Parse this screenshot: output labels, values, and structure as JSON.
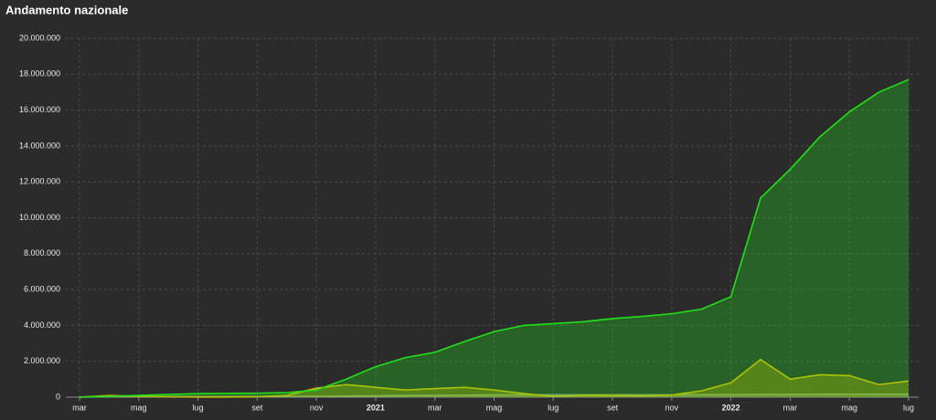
{
  "chart_data": {
    "type": "area",
    "title": "Andamento nazionale",
    "categories": [
      "mar",
      null,
      "mag",
      null,
      "lug",
      null,
      "set",
      null,
      "nov",
      null,
      "2021",
      null,
      "mar",
      null,
      "mag",
      null,
      "lug",
      null,
      "set",
      null,
      "nov",
      null,
      "2022",
      null,
      "mar",
      null,
      "mag",
      null,
      "lug"
    ],
    "series": [
      {
        "color": "#22e01a",
        "values": [
          10000,
          50000,
          100000,
          150000,
          200000,
          210000,
          220000,
          250000,
          400000,
          1000000,
          1700000,
          2200000,
          2500000,
          3100000,
          3650000,
          4000000,
          4100000,
          4200000,
          4380000,
          4500000,
          4650000,
          4900000,
          5600000,
          11100000,
          12700000,
          14500000,
          15900000,
          17000000,
          17700000
        ]
      },
      {
        "color": "#e6b800",
        "values": [
          0,
          90000,
          50000,
          30000,
          12000,
          12000,
          30000,
          100000,
          500000,
          700000,
          550000,
          400000,
          480000,
          550000,
          400000,
          200000,
          50000,
          100000,
          100000,
          80000,
          120000,
          350000,
          800000,
          2100000,
          1000000,
          1250000,
          1200000,
          700000,
          900000
        ]
      },
      {
        "color": "#9a9a9a",
        "values": [
          2000,
          25000,
          32000,
          34000,
          35000,
          35000,
          36000,
          38000,
          45000,
          60000,
          75000,
          90000,
          100000,
          115000,
          125000,
          128000,
          128000,
          129000,
          130000,
          132000,
          133000,
          137000,
          140000,
          150000,
          155000,
          161000,
          165000,
          168000,
          170000
        ]
      }
    ],
    "ylim": [
      0,
      20000000
    ],
    "yticks": [
      0,
      {
        "value": 2000000,
        "label": "2.000.000"
      },
      {
        "value": 4000000,
        "label": "4.000.000"
      },
      {
        "value": 6000000,
        "label": "6.000.000"
      },
      {
        "value": 8000000,
        "label": "8.000.000"
      },
      {
        "value": 10000000,
        "label": "10.000.000"
      },
      {
        "value": 12000000,
        "label": "12.000.000"
      },
      {
        "value": 14000000,
        "label": "14.000.000"
      },
      {
        "value": 16000000,
        "label": "16.000.000"
      },
      {
        "value": 18000000,
        "label": "18.000.000"
      },
      {
        "value": 20000000,
        "label": "20.000.000"
      }
    ],
    "grid": true
  }
}
